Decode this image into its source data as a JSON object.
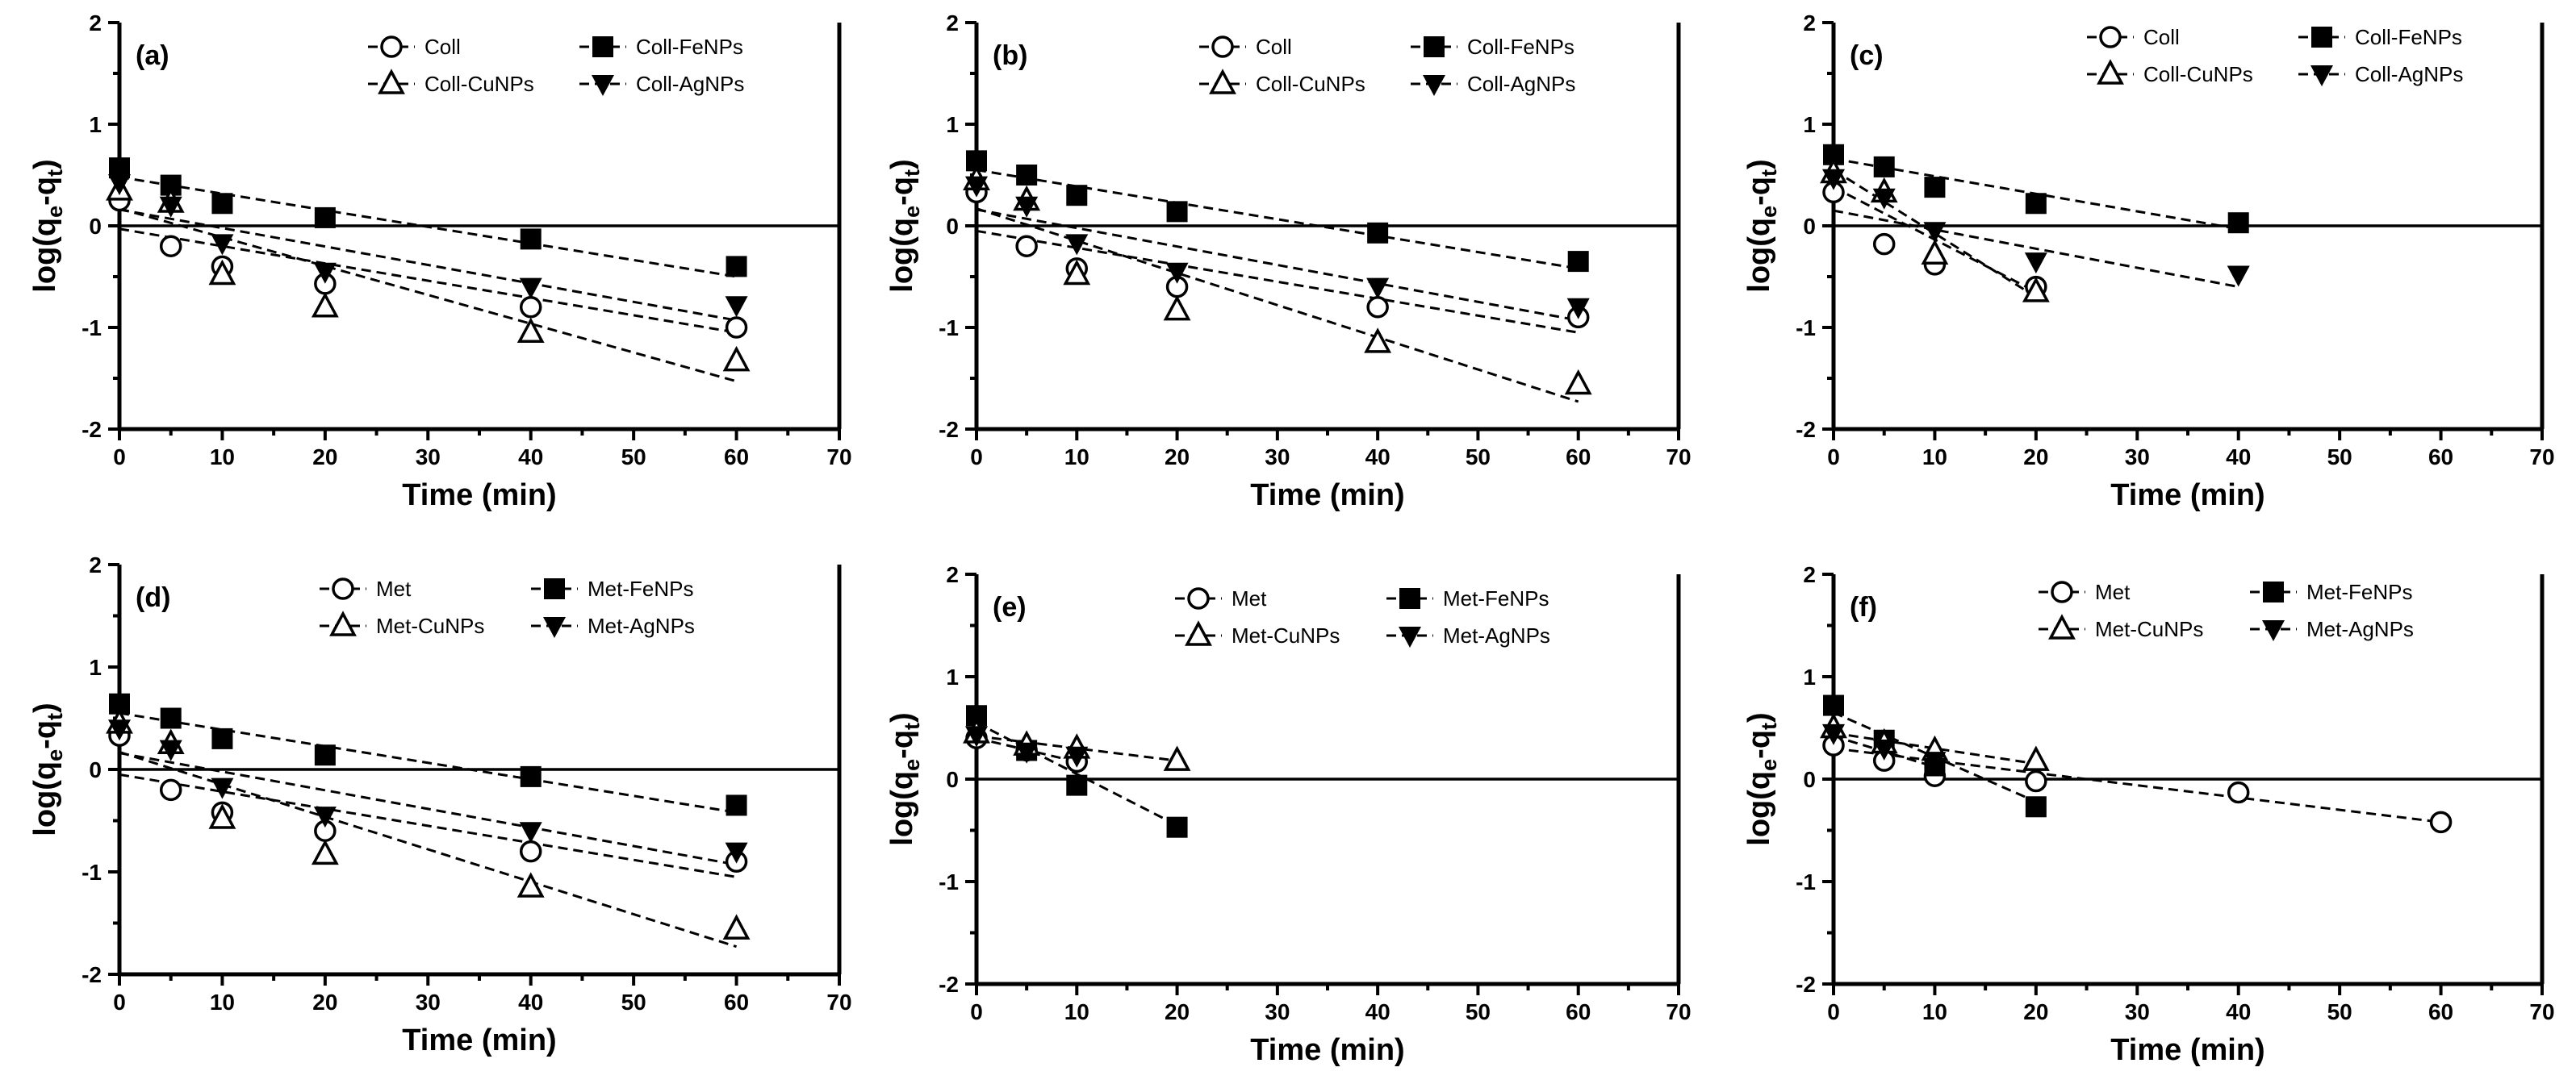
{
  "figure": {
    "xlabel": "Time (min)"
  },
  "chart_data": [
    {
      "type": "scatter",
      "panel_label": "(a)",
      "xlabel": "Time (min)",
      "ylabel": "log(q_e-q_t)",
      "xlim": [
        0,
        70
      ],
      "ylim": [
        -2,
        2
      ],
      "xticks": [
        "0",
        "10",
        "20",
        "30",
        "40",
        "50",
        "60",
        "70"
      ],
      "yticks": [
        "2",
        "1",
        "0",
        "-1",
        "-2"
      ],
      "series": [
        {
          "name": "Coll",
          "marker": "circle",
          "x": [
            0,
            5,
            10,
            20,
            40,
            60
          ],
          "y": [
            0.25,
            -0.2,
            -0.4,
            -0.57,
            -0.8,
            -1.0
          ],
          "fit": [
            [
              0,
              -0.03
            ],
            [
              60,
              -1.05
            ]
          ]
        },
        {
          "name": "Coll-FeNPs",
          "marker": "square",
          "x": [
            0,
            5,
            10,
            20,
            40,
            60
          ],
          "y": [
            0.57,
            0.4,
            0.22,
            0.08,
            -0.13,
            -0.4
          ],
          "fit": [
            [
              0,
              0.48
            ],
            [
              60,
              -0.5
            ]
          ]
        },
        {
          "name": "Coll-CuNPs",
          "marker": "triangle-up",
          "x": [
            0,
            5,
            10,
            20,
            40,
            60
          ],
          "y": [
            0.35,
            0.23,
            -0.48,
            -0.8,
            -1.05,
            -1.33
          ],
          "fit": [
            [
              0,
              0.17
            ],
            [
              60,
              -1.53
            ]
          ]
        },
        {
          "name": "Coll-AgNPs",
          "marker": "triangle-down",
          "x": [
            0,
            5,
            10,
            20,
            40,
            60
          ],
          "y": [
            0.42,
            0.2,
            -0.17,
            -0.45,
            -0.6,
            -0.78
          ],
          "fit": [
            [
              0,
              0.16
            ],
            [
              60,
              -0.93
            ]
          ]
        }
      ],
      "legend": [
        "Coll",
        "Coll-FeNPs",
        "Coll-CuNPs",
        "Coll-AgNPs"
      ]
    },
    {
      "type": "scatter",
      "panel_label": "(b)",
      "xlabel": "Time (min)",
      "ylabel": "log(q_e-q_t)",
      "xlim": [
        0,
        70
      ],
      "ylim": [
        -2,
        2
      ],
      "xticks": [
        "0",
        "10",
        "20",
        "30",
        "40",
        "50",
        "60",
        "70"
      ],
      "yticks": [
        "2",
        "1",
        "0",
        "-1",
        "-2"
      ],
      "series": [
        {
          "name": "Coll",
          "marker": "circle",
          "x": [
            0,
            5,
            10,
            20,
            40,
            60
          ],
          "y": [
            0.33,
            -0.2,
            -0.42,
            -0.6,
            -0.8,
            -0.9
          ],
          "fit": [
            [
              0,
              -0.05
            ],
            [
              60,
              -1.05
            ]
          ]
        },
        {
          "name": "Coll-FeNPs",
          "marker": "square",
          "x": [
            0,
            5,
            10,
            20,
            40,
            60
          ],
          "y": [
            0.64,
            0.5,
            0.3,
            0.14,
            -0.07,
            -0.35
          ],
          "fit": [
            [
              0,
              0.55
            ],
            [
              60,
              -0.42
            ]
          ]
        },
        {
          "name": "Coll-CuNPs",
          "marker": "triangle-up",
          "x": [
            0,
            5,
            10,
            20,
            40,
            60
          ],
          "y": [
            0.45,
            0.25,
            -0.48,
            -0.83,
            -1.15,
            -1.56
          ],
          "fit": [
            [
              0,
              0.17
            ],
            [
              60,
              -1.73
            ]
          ]
        },
        {
          "name": "Coll-AgNPs",
          "marker": "triangle-down",
          "x": [
            0,
            5,
            10,
            20,
            40,
            60
          ],
          "y": [
            0.4,
            0.2,
            -0.17,
            -0.45,
            -0.6,
            -0.8
          ],
          "fit": [
            [
              0,
              0.16
            ],
            [
              60,
              -0.93
            ]
          ]
        }
      ],
      "legend": [
        "Coll",
        "Coll-FeNPs",
        "Coll-CuNPs",
        "Coll-AgNPs"
      ]
    },
    {
      "type": "scatter",
      "panel_label": "(c)",
      "xlabel": "Time (min)",
      "ylabel": "log(q_e-q_t)",
      "xlim": [
        0,
        70
      ],
      "ylim": [
        -2,
        2
      ],
      "xticks": [
        "0",
        "10",
        "20",
        "30",
        "40",
        "50",
        "60",
        "70"
      ],
      "yticks": [
        "2",
        "1",
        "0",
        "-1",
        "-2"
      ],
      "series": [
        {
          "name": "Coll",
          "marker": "circle",
          "x": [
            0,
            5,
            10,
            20
          ],
          "y": [
            0.33,
            -0.18,
            -0.38,
            -0.6
          ],
          "fit": [
            [
              0,
              0.38
            ],
            [
              20,
              -0.65
            ]
          ]
        },
        {
          "name": "Coll-FeNPs",
          "marker": "square",
          "x": [
            0,
            5,
            10,
            20,
            40
          ],
          "y": [
            0.7,
            0.58,
            0.38,
            0.22,
            0.03
          ],
          "fit": [
            [
              0,
              0.66
            ],
            [
              40,
              -0.03
            ]
          ]
        },
        {
          "name": "Coll-CuNPs",
          "marker": "triangle-up",
          "x": [
            0,
            5,
            10,
            20
          ],
          "y": [
            0.52,
            0.33,
            -0.28,
            -0.65
          ],
          "fit": [
            [
              0,
              0.55
            ],
            [
              20,
              -0.7
            ]
          ]
        },
        {
          "name": "Coll-AgNPs",
          "marker": "triangle-down",
          "x": [
            0,
            5,
            10,
            20,
            40
          ],
          "y": [
            0.47,
            0.28,
            -0.05,
            -0.35,
            -0.48
          ],
          "fit": [
            [
              0,
              0.15
            ],
            [
              40,
              -0.6
            ]
          ]
        }
      ],
      "legend": [
        "Coll",
        "Coll-FeNPs",
        "Coll-CuNPs",
        "Coll-AgNPs"
      ]
    },
    {
      "type": "scatter",
      "panel_label": "(d)",
      "xlabel": "Time (min)",
      "ylabel": "log(q_e-q_t)",
      "xlim": [
        0,
        70
      ],
      "ylim": [
        -2,
        2
      ],
      "xticks": [
        "0",
        "10",
        "20",
        "30",
        "40",
        "50",
        "60",
        "70"
      ],
      "yticks": [
        "2",
        "1",
        "0",
        "-1",
        "-2"
      ],
      "series": [
        {
          "name": "Met",
          "marker": "circle",
          "x": [
            0,
            5,
            10,
            20,
            40,
            60
          ],
          "y": [
            0.33,
            -0.2,
            -0.42,
            -0.6,
            -0.8,
            -0.9
          ],
          "fit": [
            [
              0,
              -0.05
            ],
            [
              60,
              -1.05
            ]
          ]
        },
        {
          "name": "Met-FeNPs",
          "marker": "square",
          "x": [
            0,
            5,
            10,
            20,
            40,
            60
          ],
          "y": [
            0.64,
            0.5,
            0.3,
            0.14,
            -0.07,
            -0.35
          ],
          "fit": [
            [
              0,
              0.55
            ],
            [
              60,
              -0.42
            ]
          ]
        },
        {
          "name": "Met-CuNPs",
          "marker": "triangle-up",
          "x": [
            0,
            5,
            10,
            20,
            40,
            60
          ],
          "y": [
            0.45,
            0.25,
            -0.48,
            -0.83,
            -1.15,
            -1.56
          ],
          "fit": [
            [
              0,
              0.17
            ],
            [
              60,
              -1.73
            ]
          ]
        },
        {
          "name": "Met-AgNPs",
          "marker": "triangle-down",
          "x": [
            0,
            5,
            10,
            20,
            40,
            60
          ],
          "y": [
            0.4,
            0.2,
            -0.17,
            -0.45,
            -0.6,
            -0.8
          ],
          "fit": [
            [
              0,
              0.16
            ],
            [
              60,
              -0.93
            ]
          ]
        }
      ],
      "legend": [
        "Met",
        "Met-FeNPs",
        "Met-CuNPs",
        "Met-AgNPs"
      ]
    },
    {
      "type": "scatter",
      "panel_label": "(e)",
      "xlabel": "Time (min)",
      "ylabel": "log(q_e-q_t)",
      "xlim": [
        0,
        70
      ],
      "ylim": [
        -2,
        2
      ],
      "xticks": [
        "0",
        "10",
        "20",
        "30",
        "40",
        "50",
        "60",
        "70"
      ],
      "yticks": [
        "2",
        "1",
        "0",
        "-1",
        "-2"
      ],
      "series": [
        {
          "name": "Met",
          "marker": "circle",
          "x": [
            0,
            5,
            10
          ],
          "y": [
            0.4,
            0.28,
            0.17
          ],
          "fit": [
            [
              0,
              0.4
            ],
            [
              10,
              0.17
            ]
          ]
        },
        {
          "name": "Met-FeNPs",
          "marker": "square",
          "x": [
            0,
            5,
            10,
            20
          ],
          "y": [
            0.62,
            0.28,
            -0.06,
            -0.47
          ],
          "fit": [
            [
              0,
              0.55
            ],
            [
              20,
              -0.45
            ]
          ]
        },
        {
          "name": "Met-CuNPs",
          "marker": "triangle-up",
          "x": [
            0,
            5,
            10,
            20
          ],
          "y": [
            0.45,
            0.33,
            0.3,
            0.18
          ],
          "fit": [
            [
              0,
              0.42
            ],
            [
              20,
              0.18
            ]
          ]
        },
        {
          "name": "Met-AgNPs",
          "marker": "triangle-down",
          "x": [
            0,
            5,
            10
          ],
          "y": [
            0.43,
            0.27,
            0.23
          ],
          "fit": []
        }
      ],
      "legend": [
        "Met",
        "Met-FeNPs",
        "Met-CuNPs",
        "Met-AgNPs"
      ]
    },
    {
      "type": "scatter",
      "panel_label": "(f)",
      "xlabel": "Time (min)",
      "ylabel": "log(q_e-q_t)",
      "xlim": [
        0,
        70
      ],
      "ylim": [
        -2,
        2
      ],
      "xticks": [
        "0",
        "10",
        "20",
        "30",
        "40",
        "50",
        "60",
        "70"
      ],
      "yticks": [
        "2",
        "1",
        "0",
        "-1",
        "-2"
      ],
      "series": [
        {
          "name": "Met",
          "marker": "circle",
          "x": [
            0,
            5,
            10,
            20,
            40,
            60
          ],
          "y": [
            0.33,
            0.18,
            0.03,
            -0.02,
            -0.13,
            -0.42
          ],
          "fit": [
            [
              0,
              0.3
            ],
            [
              60,
              -0.42
            ]
          ]
        },
        {
          "name": "Met-FeNPs",
          "marker": "square",
          "x": [
            0,
            5,
            10,
            20
          ],
          "y": [
            0.72,
            0.38,
            0.13,
            -0.27
          ],
          "fit": [
            [
              0,
              0.65
            ],
            [
              20,
              -0.22
            ]
          ]
        },
        {
          "name": "Met-CuNPs",
          "marker": "triangle-up",
          "x": [
            0,
            5,
            10,
            20
          ],
          "y": [
            0.5,
            0.35,
            0.28,
            0.18
          ],
          "fit": [
            [
              0,
              0.45
            ],
            [
              20,
              0.15
            ]
          ]
        },
        {
          "name": "Met-AgNPs",
          "marker": "triangle-down",
          "x": [
            0,
            5,
            10
          ],
          "y": [
            0.45,
            0.3,
            0.18
          ],
          "fit": [
            [
              0,
              0.42
            ],
            [
              10,
              0.12
            ]
          ]
        }
      ],
      "legend": [
        "Met",
        "Met-FeNPs",
        "Met-CuNPs",
        "Met-AgNPs"
      ]
    }
  ]
}
